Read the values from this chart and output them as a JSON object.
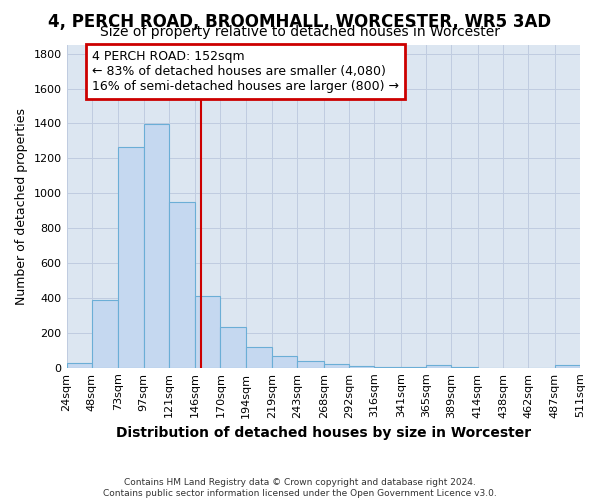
{
  "title": "4, PERCH ROAD, BROOMHALL, WORCESTER, WR5 3AD",
  "subtitle": "Size of property relative to detached houses in Worcester",
  "xlabel": "Distribution of detached houses by size in Worcester",
  "ylabel": "Number of detached properties",
  "footer_line1": "Contains HM Land Registry data © Crown copyright and database right 2024.",
  "footer_line2": "Contains public sector information licensed under the Open Government Licence v3.0.",
  "bar_left_edges": [
    24,
    48,
    73,
    97,
    121,
    146,
    170,
    194,
    219,
    243,
    268,
    292,
    316,
    341,
    365,
    389,
    414,
    438,
    462,
    487
  ],
  "bar_widths": [
    24,
    25,
    24,
    24,
    25,
    24,
    24,
    25,
    24,
    25,
    24,
    24,
    25,
    24,
    24,
    25,
    24,
    24,
    25,
    24
  ],
  "bar_heights": [
    25,
    390,
    1265,
    1395,
    950,
    410,
    235,
    120,
    65,
    40,
    20,
    10,
    5,
    2,
    15,
    5,
    0,
    0,
    0,
    15
  ],
  "bar_color": "#c5d8f0",
  "bar_edgecolor": "#6baed6",
  "tick_labels": [
    "24sqm",
    "48sqm",
    "73sqm",
    "97sqm",
    "121sqm",
    "146sqm",
    "170sqm",
    "194sqm",
    "219sqm",
    "243sqm",
    "268sqm",
    "292sqm",
    "316sqm",
    "341sqm",
    "365sqm",
    "389sqm",
    "414sqm",
    "438sqm",
    "462sqm",
    "487sqm",
    "511sqm"
  ],
  "ylim": [
    0,
    1850
  ],
  "yticks": [
    0,
    200,
    400,
    600,
    800,
    1000,
    1200,
    1400,
    1600,
    1800
  ],
  "property_line_x": 152,
  "property_line_color": "#cc0000",
  "annotation_text": "4 PERCH ROAD: 152sqm\n← 83% of detached houses are smaller (4,080)\n16% of semi-detached houses are larger (800) →",
  "annotation_box_facecolor": "#ffffff",
  "annotation_box_edgecolor": "#cc0000",
  "grid_color": "#c0cce0",
  "plot_background": "#dce6f1",
  "title_fontsize": 12,
  "subtitle_fontsize": 10,
  "xlabel_fontsize": 10,
  "ylabel_fontsize": 9,
  "tick_fontsize": 8,
  "annotation_fontsize": 9
}
